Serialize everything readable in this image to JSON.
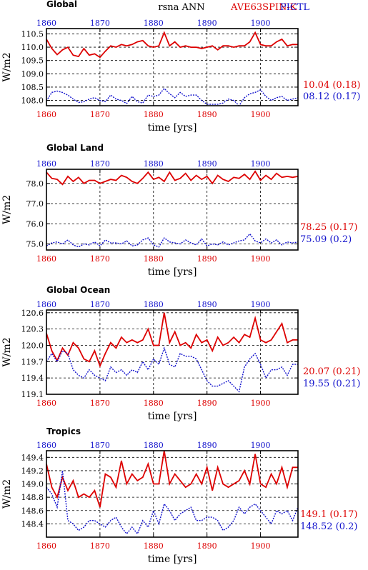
{
  "header": {
    "variable": "rsna ANN",
    "case_label": "AVE63SPIN-K",
    "ctl_label": "PICTL"
  },
  "colors": {
    "case": "#dd0000",
    "ctl": "#1111cc",
    "grid": "#000000"
  },
  "chart_data": [
    {
      "type": "line",
      "title": "Global",
      "xlabel": "time [yrs]",
      "ylabel": "W/m2",
      "xlim": [
        1860,
        1907
      ],
      "ylim": [
        107.8,
        110.7
      ],
      "x_ticks": [
        1860,
        1870,
        1880,
        1890,
        1900
      ],
      "x_tick_labels": [
        "1860",
        "1870",
        "1880",
        "1890",
        "1900"
      ],
      "y_ticks": [
        108.0,
        108.5,
        109.0,
        109.5,
        110.0,
        110.5
      ],
      "y_tick_labels": [
        "108.0",
        "108.5",
        "109.0",
        "109.5",
        "110.0",
        "110.5"
      ],
      "grid": true,
      "series": [
        {
          "key": "case",
          "values": [
            110.3,
            109.95,
            109.72,
            109.9,
            110.0,
            109.7,
            109.65,
            109.95,
            109.7,
            109.75,
            109.62,
            109.85,
            110.05,
            110.0,
            110.1,
            110.05,
            110.1,
            110.2,
            110.25,
            110.05,
            110.0,
            110.05,
            110.55,
            110.05,
            110.2,
            110.0,
            110.05,
            110.0,
            110.0,
            109.95,
            110.0,
            110.05,
            109.9,
            110.05,
            110.05,
            110.0,
            110.05,
            110.05,
            110.2,
            110.55,
            110.1,
            110.05,
            110.05,
            110.2,
            110.3,
            110.05,
            110.1,
            110.1
          ],
          "label": "10.04 (0.18)"
        },
        {
          "key": "ctl",
          "values": [
            107.98,
            108.3,
            108.35,
            108.3,
            108.2,
            108.05,
            107.92,
            107.95,
            108.05,
            108.1,
            108.0,
            107.95,
            108.2,
            108.05,
            108.0,
            107.88,
            108.15,
            107.95,
            107.9,
            108.2,
            108.15,
            108.2,
            108.45,
            108.25,
            108.1,
            108.3,
            108.15,
            108.2,
            108.2,
            108.0,
            107.85,
            107.85,
            107.85,
            107.9,
            108.05,
            108.0,
            107.8,
            108.1,
            108.25,
            108.3,
            108.4,
            108.15,
            108.0,
            108.1,
            108.15,
            108.0,
            108.05,
            108.1
          ],
          "label": "08.12 (0.17)"
        }
      ]
    },
    {
      "type": "line",
      "title": "Global Land",
      "xlabel": "time [yrs]",
      "ylabel": "W/m2",
      "xlim": [
        1860,
        1907
      ],
      "ylim": [
        74.7,
        78.7
      ],
      "x_ticks": [
        1860,
        1870,
        1880,
        1890,
        1900
      ],
      "x_tick_labels": [
        "1860",
        "1870",
        "1880",
        "1890",
        "1900"
      ],
      "y_ticks": [
        75.0,
        76.0,
        77.0,
        78.0
      ],
      "y_tick_labels": [
        "75.0",
        "76.0",
        "77.0",
        "78.0"
      ],
      "grid": true,
      "series": [
        {
          "key": "case",
          "values": [
            78.55,
            78.25,
            78.2,
            77.95,
            78.35,
            78.1,
            78.3,
            78.0,
            78.15,
            78.15,
            78.0,
            78.1,
            78.2,
            78.15,
            78.4,
            78.3,
            78.1,
            78.0,
            78.25,
            78.55,
            78.2,
            78.3,
            78.1,
            78.55,
            78.15,
            78.25,
            78.5,
            78.15,
            78.4,
            78.2,
            78.35,
            78.0,
            78.4,
            78.2,
            78.1,
            78.3,
            78.25,
            78.45,
            78.2,
            78.6,
            78.15,
            78.4,
            78.2,
            78.5,
            78.3,
            78.35,
            78.3,
            78.35
          ],
          "label": "78.25 (0.17)"
        },
        {
          "key": "ctl",
          "values": [
            74.9,
            75.05,
            75.1,
            75.0,
            75.2,
            74.95,
            74.85,
            75.0,
            74.95,
            75.1,
            74.9,
            75.2,
            75.05,
            75.05,
            75.0,
            75.15,
            74.9,
            74.95,
            75.2,
            75.3,
            74.95,
            74.85,
            75.3,
            75.1,
            75.05,
            75.0,
            75.2,
            75.05,
            74.95,
            75.25,
            74.9,
            75.0,
            74.95,
            75.1,
            74.95,
            75.05,
            75.15,
            75.2,
            75.5,
            75.15,
            75.05,
            75.25,
            75.05,
            75.2,
            74.95,
            75.1,
            75.05,
            75.1
          ],
          "label": "75.09 (0.2)"
        }
      ]
    },
    {
      "type": "line",
      "title": "Global Ocean",
      "xlabel": "time [yrs]",
      "ylabel": "W/m2",
      "xlim": [
        1860,
        1907
      ],
      "ylim": [
        119.1,
        120.65
      ],
      "x_ticks": [
        1860,
        1870,
        1880,
        1890,
        1900
      ],
      "x_tick_labels": [
        "1860",
        "1870",
        "1880",
        "1890",
        "1900"
      ],
      "y_ticks": [
        119.1,
        119.4,
        119.7,
        120.0,
        120.3,
        120.6
      ],
      "y_tick_labels": [
        "119.1",
        "119.4",
        "119.7",
        "120.0",
        "120.3",
        "120.6"
      ],
      "grid": true,
      "series": [
        {
          "key": "case",
          "values": [
            120.22,
            119.9,
            119.72,
            119.95,
            119.82,
            120.05,
            119.95,
            119.75,
            119.7,
            119.9,
            119.62,
            119.85,
            120.05,
            119.95,
            120.15,
            120.05,
            120.1,
            120.05,
            120.1,
            120.3,
            120.0,
            120.0,
            120.6,
            120.05,
            120.25,
            120.0,
            120.05,
            119.95,
            120.2,
            120.05,
            120.1,
            119.9,
            120.15,
            120.0,
            120.05,
            120.15,
            120.05,
            120.2,
            120.15,
            120.5,
            120.1,
            120.05,
            120.1,
            120.25,
            120.4,
            120.05,
            120.1,
            120.1
          ],
          "label": "20.07 (0.21)"
        },
        {
          "key": "ctl",
          "values": [
            119.7,
            119.85,
            119.7,
            119.9,
            119.85,
            119.55,
            119.45,
            119.4,
            119.55,
            119.45,
            119.4,
            119.35,
            119.6,
            119.5,
            119.55,
            119.45,
            119.55,
            119.5,
            119.7,
            119.55,
            119.75,
            119.65,
            119.95,
            119.65,
            119.6,
            119.85,
            119.8,
            119.8,
            119.75,
            119.55,
            119.35,
            119.25,
            119.25,
            119.3,
            119.35,
            119.25,
            119.15,
            119.6,
            119.75,
            119.85,
            119.65,
            119.4,
            119.55,
            119.55,
            119.6,
            119.45,
            119.65,
            119.65
          ],
          "label": "19.55 (0.21)"
        }
      ]
    },
    {
      "type": "line",
      "title": "Tropics",
      "xlabel": "time [yrs]",
      "ylabel": "W/m2",
      "xlim": [
        1860,
        1907
      ],
      "ylim": [
        148.2,
        149.5
      ],
      "x_ticks": [
        1860,
        1870,
        1880,
        1890,
        1900
      ],
      "x_tick_labels": [
        "1860",
        "1870",
        "1880",
        "1890",
        "1900"
      ],
      "y_ticks": [
        148.4,
        148.6,
        148.8,
        149.0,
        149.2,
        149.4
      ],
      "y_tick_labels": [
        "148.4",
        "148.6",
        "148.8",
        "149.0",
        "149.2",
        "149.4"
      ],
      "grid": true,
      "series": [
        {
          "key": "case",
          "values": [
            149.3,
            148.95,
            148.8,
            149.1,
            148.9,
            149.05,
            148.8,
            148.85,
            148.8,
            148.9,
            148.65,
            149.15,
            149.1,
            148.95,
            149.35,
            149.0,
            149.15,
            149.05,
            149.1,
            149.3,
            149.0,
            149.0,
            149.5,
            149.0,
            149.15,
            149.05,
            148.95,
            149.0,
            149.15,
            149.0,
            149.25,
            148.9,
            149.25,
            149.0,
            148.95,
            149.0,
            149.05,
            149.2,
            149.0,
            149.45,
            149.0,
            148.95,
            149.15,
            149.0,
            149.25,
            148.95,
            149.25,
            149.25
          ],
          "label": "149.1 (0.17)"
        },
        {
          "key": "ctl",
          "values": [
            148.95,
            148.85,
            148.65,
            149.2,
            148.45,
            148.4,
            148.3,
            148.35,
            148.45,
            148.45,
            148.4,
            148.35,
            148.45,
            148.5,
            148.35,
            148.25,
            148.35,
            148.25,
            148.45,
            148.35,
            148.6,
            148.4,
            148.7,
            148.6,
            148.45,
            148.55,
            148.6,
            148.65,
            148.45,
            148.45,
            148.5,
            148.5,
            148.45,
            148.3,
            148.35,
            148.45,
            148.65,
            148.55,
            148.65,
            148.7,
            148.6,
            148.5,
            148.4,
            148.6,
            148.55,
            148.6,
            148.45,
            148.65
          ],
          "label": "148.52 (0.2)"
        }
      ]
    }
  ]
}
